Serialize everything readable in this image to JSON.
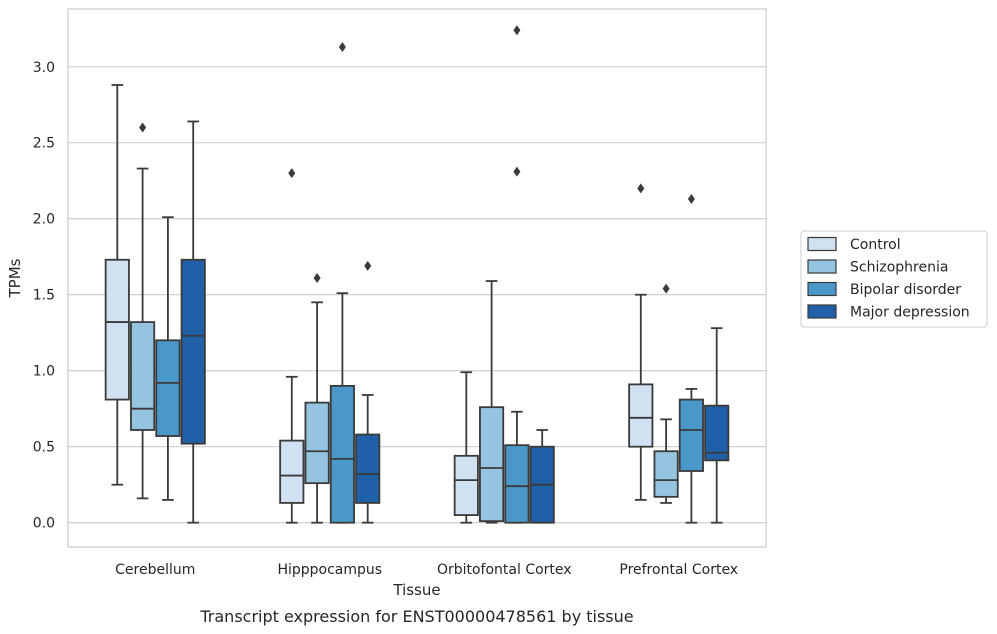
{
  "caption": "Transcript expression for ENST00000478561 by tissue",
  "chart_data": {
    "type": "box",
    "xlabel": "Tissue",
    "ylabel": "TPMs",
    "ylim": [
      -0.16,
      3.38
    ],
    "yticks": [
      0.0,
      0.5,
      1.0,
      1.5,
      2.0,
      2.5,
      3.0
    ],
    "ytick_labels": [
      "0.0",
      "0.5",
      "1.0",
      "1.5",
      "2.0",
      "2.5",
      "3.0"
    ],
    "grid": "horizontal",
    "legend_position": "right",
    "categories": [
      "Cerebellum",
      "Hipppocampus",
      "Orbitofontal Cortex",
      "Prefrontal Cortex"
    ],
    "series": [
      {
        "name": "Control",
        "color": "#d0e1f2",
        "boxes": [
          {
            "whislo": 0.25,
            "q1": 0.81,
            "med": 1.32,
            "q3": 1.73,
            "whishi": 2.88,
            "fliers": []
          },
          {
            "whislo": 0.0,
            "q1": 0.13,
            "med": 0.31,
            "q3": 0.54,
            "whishi": 0.96,
            "fliers": [
              2.3
            ]
          },
          {
            "whislo": 0.0,
            "q1": 0.05,
            "med": 0.28,
            "q3": 0.44,
            "whishi": 0.99,
            "fliers": []
          },
          {
            "whislo": 0.15,
            "q1": 0.5,
            "med": 0.69,
            "q3": 0.91,
            "whishi": 1.5,
            "fliers": [
              2.2
            ]
          }
        ]
      },
      {
        "name": "Schizophrenia",
        "color": "#94c4df",
        "boxes": [
          {
            "whislo": 0.16,
            "q1": 0.61,
            "med": 0.75,
            "q3": 1.32,
            "whishi": 2.33,
            "fliers": [
              2.6
            ]
          },
          {
            "whislo": 0.0,
            "q1": 0.26,
            "med": 0.47,
            "q3": 0.79,
            "whishi": 1.45,
            "fliers": [
              1.61
            ]
          },
          {
            "whislo": 0.0,
            "q1": 0.01,
            "med": 0.36,
            "q3": 0.76,
            "whishi": 1.59,
            "fliers": []
          },
          {
            "whislo": 0.13,
            "q1": 0.17,
            "med": 0.28,
            "q3": 0.47,
            "whishi": 0.68,
            "fliers": [
              1.54
            ]
          }
        ]
      },
      {
        "name": "Bipolar disorder",
        "color": "#4a98c9",
        "boxes": [
          {
            "whislo": 0.15,
            "q1": 0.57,
            "med": 0.92,
            "q3": 1.2,
            "whishi": 2.01,
            "fliers": []
          },
          {
            "whislo": 0.0,
            "q1": 0.0,
            "med": 0.42,
            "q3": 0.9,
            "whishi": 1.51,
            "fliers": [
              3.13
            ]
          },
          {
            "whislo": 0.0,
            "q1": 0.0,
            "med": 0.24,
            "q3": 0.51,
            "whishi": 0.73,
            "fliers": [
              3.24,
              2.31
            ]
          },
          {
            "whislo": 0.0,
            "q1": 0.34,
            "med": 0.61,
            "q3": 0.81,
            "whishi": 0.88,
            "fliers": [
              2.13
            ]
          }
        ]
      },
      {
        "name": "Major depression",
        "color": "#2060a8",
        "boxes": [
          {
            "whislo": 0.0,
            "q1": 0.52,
            "med": 1.23,
            "q3": 1.73,
            "whishi": 2.64,
            "fliers": []
          },
          {
            "whislo": 0.0,
            "q1": 0.13,
            "med": 0.32,
            "q3": 0.58,
            "whishi": 0.84,
            "fliers": [
              1.69
            ]
          },
          {
            "whislo": 0.0,
            "q1": 0.0,
            "med": 0.25,
            "q3": 0.5,
            "whishi": 0.61,
            "fliers": []
          },
          {
            "whislo": 0.0,
            "q1": 0.41,
            "med": 0.46,
            "q3": 0.77,
            "whishi": 1.28,
            "fliers": []
          }
        ]
      }
    ]
  }
}
